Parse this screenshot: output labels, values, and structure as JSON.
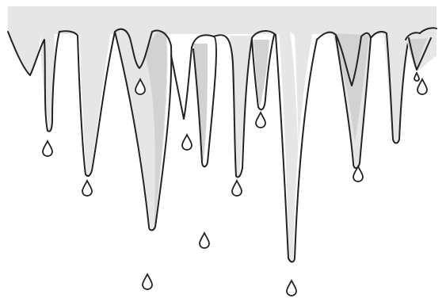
{
  "image": {
    "subject": "icicles-with-water-drops",
    "colors": {
      "background": "#ffffff",
      "top_band": "#e6e6e6",
      "icicle_fill": "#e6e6e6",
      "icicle_shadow": "#d2d2d2",
      "highlight": "#ffffff",
      "outline": "#222222"
    },
    "icicle_count": 9,
    "drop_count": 12
  }
}
